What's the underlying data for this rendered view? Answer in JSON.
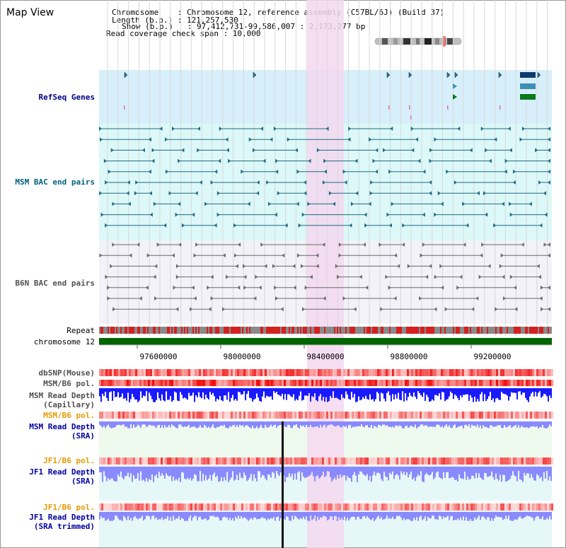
{
  "header": {
    "title": "Map View",
    "info_lines": [
      "Chromosome    : Chromosome 12, reference assembly (C57BL/6J) (Build 37)",
      "Length (b.p.) : 121,257,530",
      "Show (b.p.)   : 97,412,731-99,586,007 : 2,173,277 bp",
      "Read coverage check span : 10,000"
    ]
  },
  "tracks": {
    "refseq": "RefSeq Genes",
    "msm_bac": "MSM BAC end pairs",
    "b6n_bac": "B6N BAC end pairs",
    "repeat": "Repeat",
    "chromosome": "chromosome 12",
    "dbsnp": "dbSNP(Mouse)",
    "msm_b6_pol_1": "MSM/B6 pol.",
    "msm_read_depth_cap_1": "MSM Read Depth",
    "msm_read_depth_cap_2": "(Capillary)",
    "msm_b6_pol_2": "MSM/B6 pol.",
    "msm_read_depth_sra_1": "MSM Read Depth",
    "msm_read_depth_sra_2": "(SRA)",
    "jf1_b6_pol_1": "JF1/B6 pol.",
    "jf1_read_depth_1": "JF1 Read Depth",
    "jf1_read_depth_2": "(SRA)",
    "jf1_b6_pol_2": "JF1/B6 pol.",
    "jf1_read_depth_trim_1": "JF1 Read Depth",
    "jf1_read_depth_trim_2": "(SRA trimmed)"
  },
  "axis": {
    "ticks": [
      "97600000",
      "98000000",
      "98400000",
      "98800000",
      "99200000"
    ]
  },
  "colors": {
    "refseq_bg": "#d7effa",
    "msm_bg": "#dcf8f8",
    "b6n_bg": "#f0f0f6",
    "highlight": "#f5d8f0",
    "chromosome_bar": "#006400",
    "msm_label": "#006080",
    "refseq_label": "#000080",
    "b6n_label": "#505050",
    "orange_label": "#e69a00",
    "blue_label": "#0000a0",
    "depth_capillary": "#1a1aff",
    "depth_sra": "#8a8aff"
  }
}
